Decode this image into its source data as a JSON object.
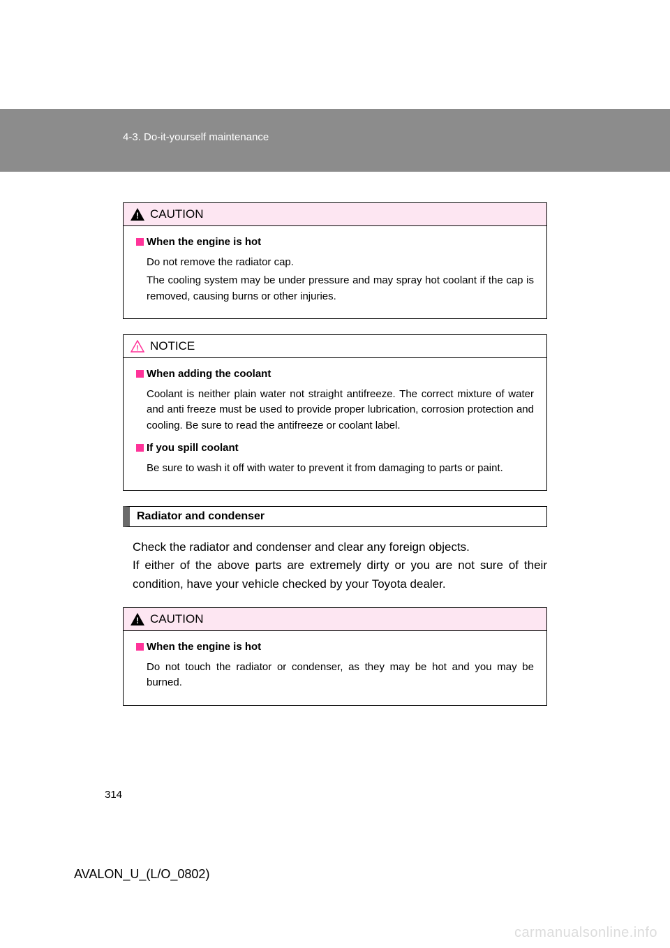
{
  "header": {
    "section_label": "4-3. Do-it-yourself maintenance"
  },
  "caution1": {
    "title": "CAUTION",
    "item1_title": "When the engine is hot",
    "line1": "Do not remove the radiator cap.",
    "line2": "The cooling system may be under pressure and may spray hot coolant if the cap is removed, causing burns or other injuries."
  },
  "notice": {
    "title": "NOTICE",
    "item1_title": "When adding the coolant",
    "item1_body": "Coolant is neither plain water not straight antifreeze. The correct mixture of water and anti freeze must be used to provide proper lubrication, corrosion protection and cooling. Be sure to read the antifreeze or coolant label.",
    "item2_title": "If you spill coolant",
    "item2_body": "Be sure to wash it off with water to prevent it from damaging to parts or paint."
  },
  "section": {
    "heading": "Radiator and condenser",
    "body": "Check the radiator and condenser and clear any foreign objects.\nIf either of the above parts are extremely dirty or you are not sure of their condition, have your vehicle checked by your Toyota dealer."
  },
  "caution2": {
    "title": "CAUTION",
    "item1_title": "When the engine is hot",
    "item1_body": "Do not touch the radiator or condenser, as they may be hot and you may be burned."
  },
  "footer": {
    "page_number": "314",
    "doc_code": "AVALON_U_(L/O_0802)",
    "watermark": "carmanualsonline.info"
  },
  "colors": {
    "header_band": "#8c8c8c",
    "caution_bg": "#fde6f2",
    "bullet": "#ff3399",
    "section_tab": "#6b6b6b",
    "watermark": "#dcdcdc"
  }
}
